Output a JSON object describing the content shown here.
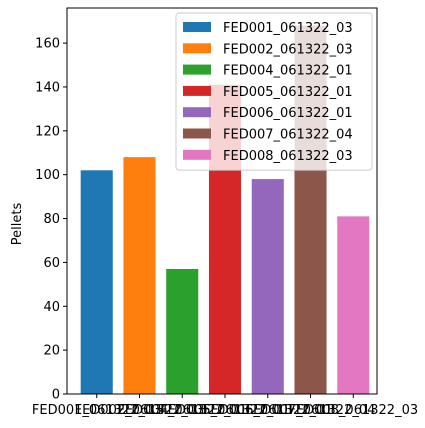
{
  "chart_data": {
    "type": "bar",
    "categories": [
      "FED001_061322_03",
      "FED002_061322_03",
      "FED004_061322_01",
      "FED005_061322_01",
      "FED006_061322_01",
      "FED007_061322_04",
      "FED008_061322_03"
    ],
    "values": [
      102,
      108,
      57,
      141,
      98,
      168,
      81
    ],
    "colors": [
      "#1f77b4",
      "#ff7f0e",
      "#2ca02c",
      "#d62728",
      "#9467bd",
      "#8c564b",
      "#e377c2"
    ],
    "title": "",
    "xlabel": "",
    "ylabel": "Pellets",
    "ylim": [
      0,
      176
    ],
    "yticks": [
      0,
      20,
      40,
      60,
      80,
      100,
      120,
      140,
      160
    ],
    "grid": false,
    "legend_position": "top-right",
    "legend": [
      "FED001_061322_03",
      "FED002_061322_03",
      "FED004_061322_01",
      "FED005_061322_01",
      "FED006_061322_01",
      "FED007_061322_04",
      "FED008_061322_03"
    ]
  }
}
